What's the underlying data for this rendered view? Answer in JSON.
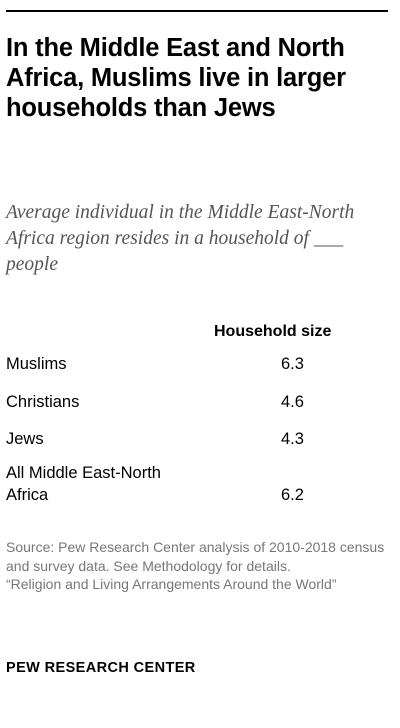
{
  "title": "In the Middle East and North Africa, Muslims live in larger households than Jews",
  "subtitle": "Average individual in the Middle East-North Africa region resides in a household of ___ people",
  "chart_data": {
    "type": "table",
    "columns": [
      "",
      "Household size"
    ],
    "rows": [
      {
        "label": "Muslims",
        "value": 6.3,
        "display": "6.3"
      },
      {
        "label": "Christians",
        "value": 4.6,
        "display": "4.6"
      },
      {
        "label": "Jews",
        "value": 4.3,
        "display": "4.3"
      },
      {
        "label": "All Middle East-North Africa",
        "value": 6.2,
        "display": "6.2"
      }
    ]
  },
  "source": {
    "line1": "Source: Pew Research Center analysis of 2010-2018 census and survey data. See Methodology for details.",
    "line2": "“Religion and Living Arrangements Around the World”"
  },
  "brand": "PEW RESEARCH CENTER"
}
